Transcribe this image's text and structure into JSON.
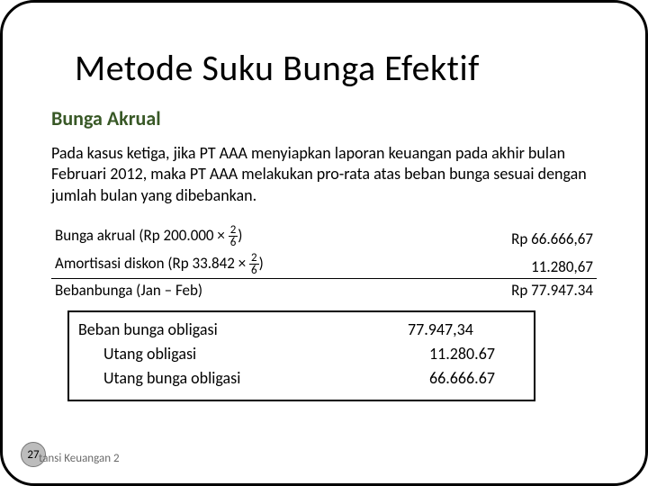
{
  "title": "Metode Suku Bunga Efektif",
  "subtitle": "Bunga Akrual",
  "paragraph": "Pada kasus ketiga, jika PT AAA menyiapkan laporan keuangan pada akhir bulan Februari 2012, maka PT AAA melakukan pro-rata atas beban bunga sesuai dengan jumlah bulan yang dibebankan.",
  "calc": {
    "rows": [
      {
        "label_pre": "Bunga akrual (Rp 200.000 × ",
        "frac_num": "2",
        "frac_den": "6",
        "label_post": ")",
        "value": "Rp 66.666,67"
      },
      {
        "label_pre": "Amortisasi diskon (Rp 33.842 × ",
        "frac_num": "2",
        "frac_den": "6",
        "label_post": ")",
        "value": "11.280,67"
      }
    ],
    "total_label": "Bebanbunga (Jan – Feb)",
    "total_value": "Rp 77.947.34"
  },
  "journal": {
    "rows": [
      {
        "label": "Beban bunga obligasi",
        "amount": "77.947,34",
        "indent_label": false,
        "indent_amount": false
      },
      {
        "label": "Utang obligasi",
        "amount": "11.280.67",
        "indent_label": true,
        "indent_amount": true
      },
      {
        "label": "Utang bunga obligasi",
        "amount": "66.666.67",
        "indent_label": true,
        "indent_amount": true
      }
    ]
  },
  "page_number": "27",
  "footer": "tansi Keuangan 2",
  "colors": {
    "subtitle": "#385826",
    "border": "#000000",
    "pagenum_bg": "#bcbcbc",
    "footer_text": "#6a6a6a"
  },
  "fonts": {
    "title_size_pt": 40,
    "subtitle_size_pt": 22,
    "body_size_pt": 18,
    "small_size_pt": 13
  }
}
